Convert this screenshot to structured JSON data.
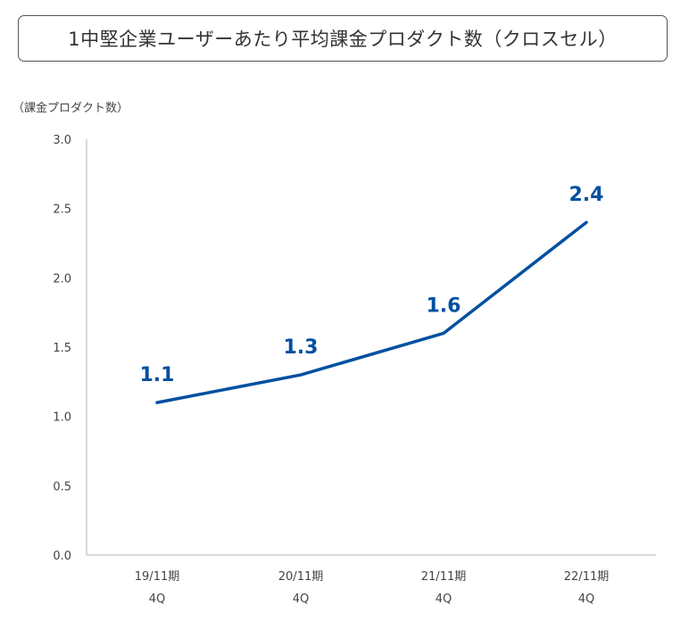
{
  "chart_data": {
    "type": "line",
    "title": "1中堅企業ユーザーあたり平均課金プロダクト数（クロスセル）",
    "ylabel": "（課金プロダクト数）",
    "xlabel": "",
    "categories": [
      "19/11期",
      "20/11期",
      "21/11期",
      "22/11期"
    ],
    "category_sublabels": [
      "4Q",
      "4Q",
      "4Q",
      "4Q"
    ],
    "series": [
      {
        "values": [
          1.1,
          1.3,
          1.6,
          2.4
        ]
      }
    ],
    "data_labels": [
      "1.1",
      "1.3",
      "1.6",
      "2.4"
    ],
    "ylim": [
      0,
      3.0
    ],
    "yticks": [
      "0.0",
      "0.5",
      "1.0",
      "1.5",
      "2.0",
      "2.5",
      "3.0"
    ],
    "grid": false,
    "line_color": "#0050A0",
    "axis_color": "#BFBFBF"
  }
}
